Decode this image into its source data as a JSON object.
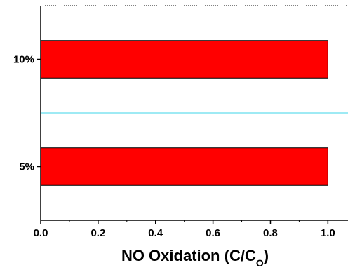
{
  "chart_data": {
    "type": "bar",
    "orientation": "horizontal",
    "categories": [
      "10%",
      "5%"
    ],
    "values": [
      1.0,
      1.0
    ],
    "xlabel": {
      "main": "NO Oxidation (C/C",
      "subscript": "O",
      "close": ")"
    },
    "ylabel": "",
    "xlim": [
      0,
      1.07
    ],
    "xticks": [
      "0.0",
      "0.2",
      "0.4",
      "0.6",
      "0.8",
      "1.0"
    ],
    "xtick_values": [
      0,
      0.2,
      0.4,
      0.6,
      0.8,
      1.0
    ],
    "grid": false,
    "legend": "none",
    "colors": {
      "bar_fill": "#ff0000",
      "bar_stroke": "#000000",
      "reference_line": "#7fe3f0",
      "axis": "#000000"
    }
  }
}
